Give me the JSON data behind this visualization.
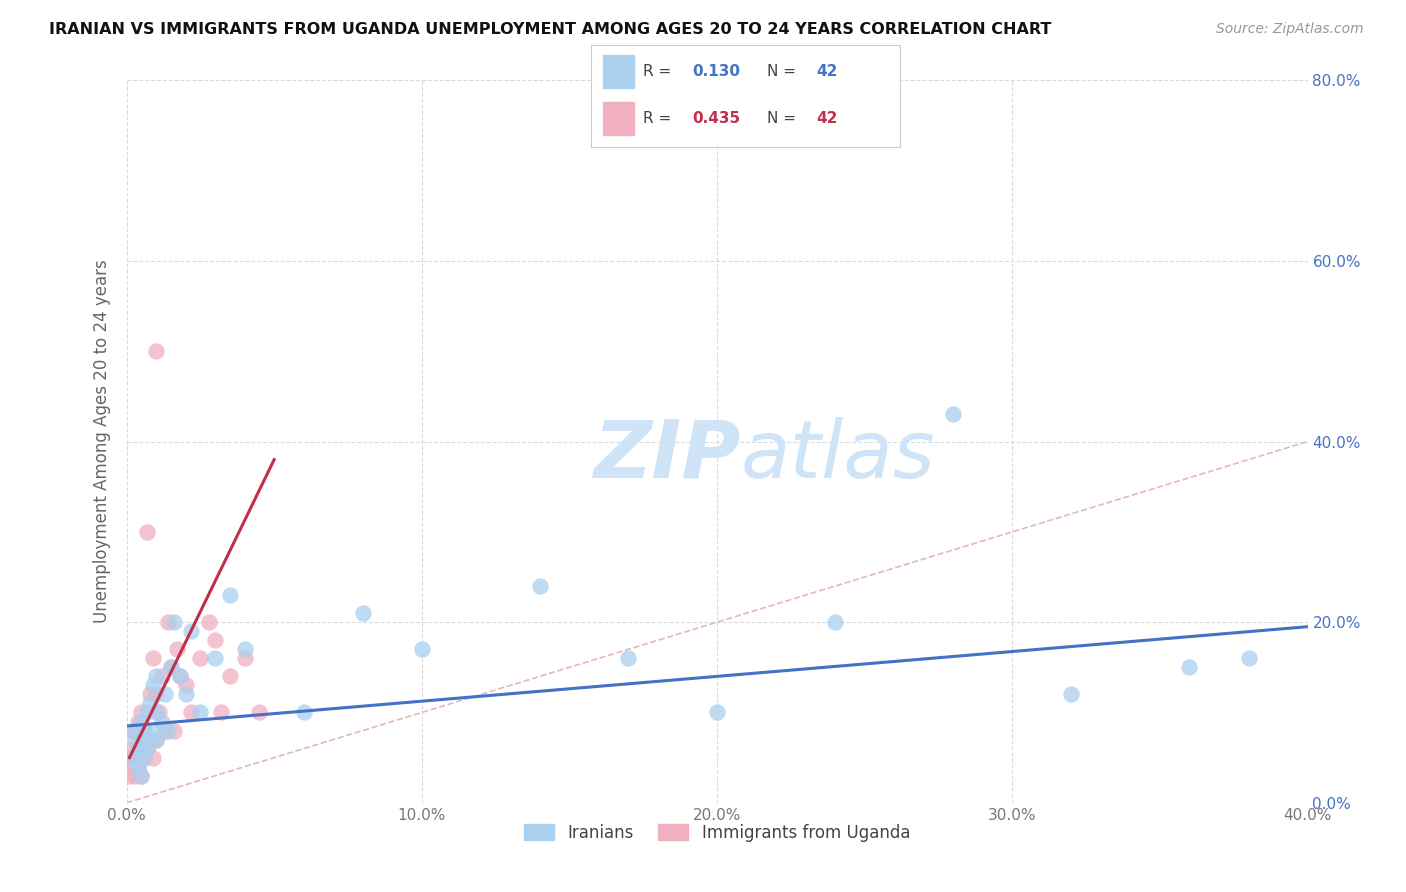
{
  "title": "IRANIAN VS IMMIGRANTS FROM UGANDA UNEMPLOYMENT AMONG AGES 20 TO 24 YEARS CORRELATION CHART",
  "source": "Source: ZipAtlas.com",
  "ylabel": "Unemployment Among Ages 20 to 24 years",
  "xlim": [
    0.0,
    0.4
  ],
  "ylim": [
    0.0,
    0.8
  ],
  "xticks": [
    0.0,
    0.1,
    0.2,
    0.3,
    0.4
  ],
  "yticks": [
    0.0,
    0.2,
    0.4,
    0.6,
    0.8
  ],
  "iranians_color": "#aad0f0",
  "uganda_color": "#f0b0c0",
  "line_iranian_color": "#4472c4",
  "line_uganda_color": "#c0304a",
  "ref_line_color": "#e0b0b8",
  "watermark_color": "#d0e4f7",
  "background_color": "#ffffff",
  "grid_color": "#d8d8d8",
  "iranians_x": [
    0.002,
    0.003,
    0.003,
    0.004,
    0.004,
    0.005,
    0.005,
    0.005,
    0.006,
    0.006,
    0.007,
    0.007,
    0.008,
    0.008,
    0.009,
    0.009,
    0.01,
    0.01,
    0.01,
    0.012,
    0.013,
    0.014,
    0.015,
    0.016,
    0.018,
    0.02,
    0.022,
    0.025,
    0.03,
    0.035,
    0.04,
    0.06,
    0.08,
    0.1,
    0.14,
    0.17,
    0.2,
    0.24,
    0.28,
    0.32,
    0.36,
    0.38
  ],
  "iranians_y": [
    0.05,
    0.07,
    0.08,
    0.04,
    0.06,
    0.03,
    0.06,
    0.09,
    0.05,
    0.08,
    0.06,
    0.1,
    0.07,
    0.11,
    0.08,
    0.13,
    0.07,
    0.1,
    0.14,
    0.09,
    0.12,
    0.08,
    0.15,
    0.2,
    0.14,
    0.12,
    0.19,
    0.1,
    0.16,
    0.23,
    0.17,
    0.1,
    0.21,
    0.17,
    0.24,
    0.16,
    0.1,
    0.2,
    0.43,
    0.12,
    0.15,
    0.16
  ],
  "uganda_x": [
    0.001,
    0.001,
    0.002,
    0.002,
    0.002,
    0.003,
    0.003,
    0.003,
    0.004,
    0.004,
    0.004,
    0.005,
    0.005,
    0.005,
    0.006,
    0.006,
    0.007,
    0.007,
    0.008,
    0.008,
    0.009,
    0.009,
    0.01,
    0.01,
    0.01,
    0.011,
    0.012,
    0.013,
    0.014,
    0.015,
    0.016,
    0.017,
    0.018,
    0.02,
    0.022,
    0.025,
    0.028,
    0.03,
    0.032,
    0.035,
    0.04,
    0.045
  ],
  "uganda_y": [
    0.03,
    0.05,
    0.04,
    0.06,
    0.08,
    0.03,
    0.05,
    0.08,
    0.04,
    0.06,
    0.09,
    0.03,
    0.07,
    0.1,
    0.05,
    0.08,
    0.06,
    0.3,
    0.07,
    0.12,
    0.05,
    0.16,
    0.07,
    0.12,
    0.5,
    0.1,
    0.14,
    0.08,
    0.2,
    0.15,
    0.08,
    0.17,
    0.14,
    0.13,
    0.1,
    0.16,
    0.2,
    0.18,
    0.1,
    0.14,
    0.16,
    0.1
  ],
  "uganda_line_x_start": 0.001,
  "uganda_line_x_end": 0.05,
  "iran_line_x_start": 0.0,
  "iran_line_x_end": 0.4,
  "iran_line_y_start": 0.085,
  "iran_line_y_end": 0.195,
  "uganda_line_y_start": 0.05,
  "uganda_line_y_end": 0.38
}
